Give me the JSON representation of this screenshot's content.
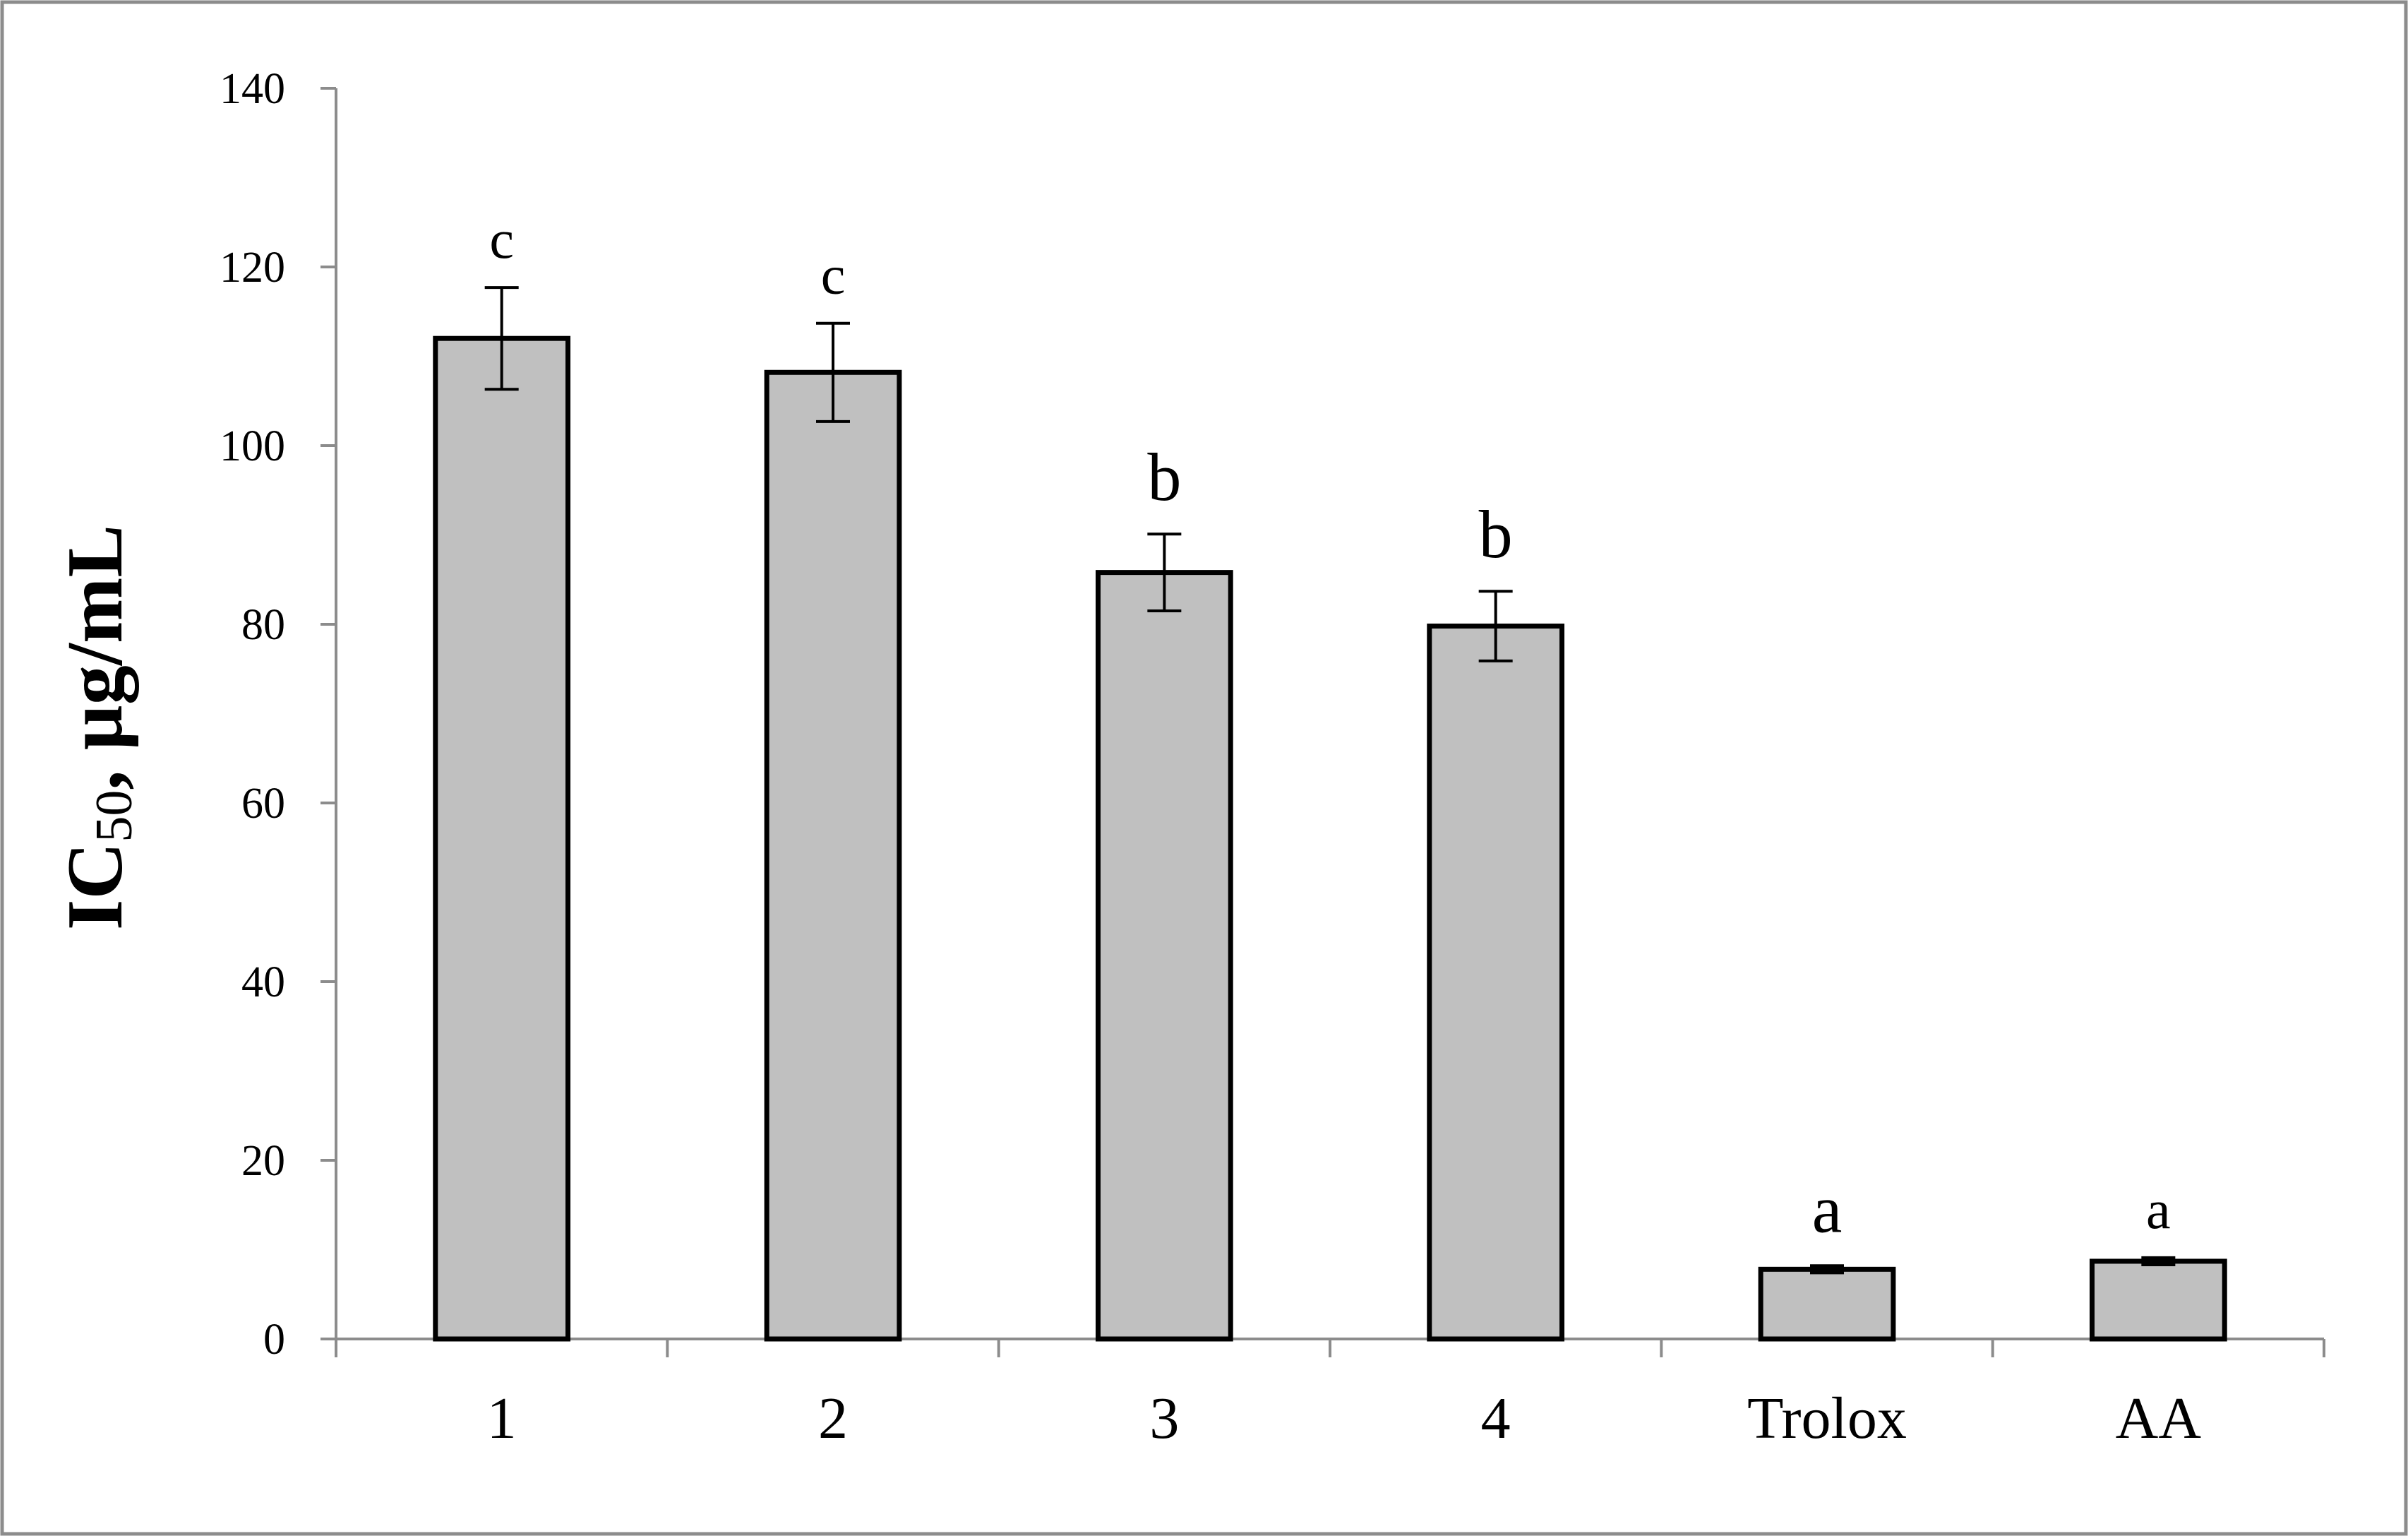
{
  "chart_data": {
    "type": "bar",
    "title": "",
    "xlabel": "",
    "ylabel": {
      "prefix": "IC",
      "subscript": "50",
      "suffix": ", µg/mL"
    },
    "ylim": [
      0,
      140
    ],
    "yticks": [
      0,
      20,
      40,
      60,
      80,
      100,
      120,
      140
    ],
    "grid": false,
    "categories": [
      "1",
      "2",
      "3",
      "4",
      "Trolox",
      "AA"
    ],
    "values": [
      112,
      108.2,
      85.8,
      79.8,
      7.8,
      8.7
    ],
    "errors": [
      5.7,
      5.5,
      4.3,
      3.9,
      0.4,
      0.4
    ],
    "significance": [
      "c",
      "c",
      "b",
      "b",
      "a",
      "a"
    ],
    "bar_color": "#c0c0c0",
    "bar_edge_color": "#000000"
  }
}
